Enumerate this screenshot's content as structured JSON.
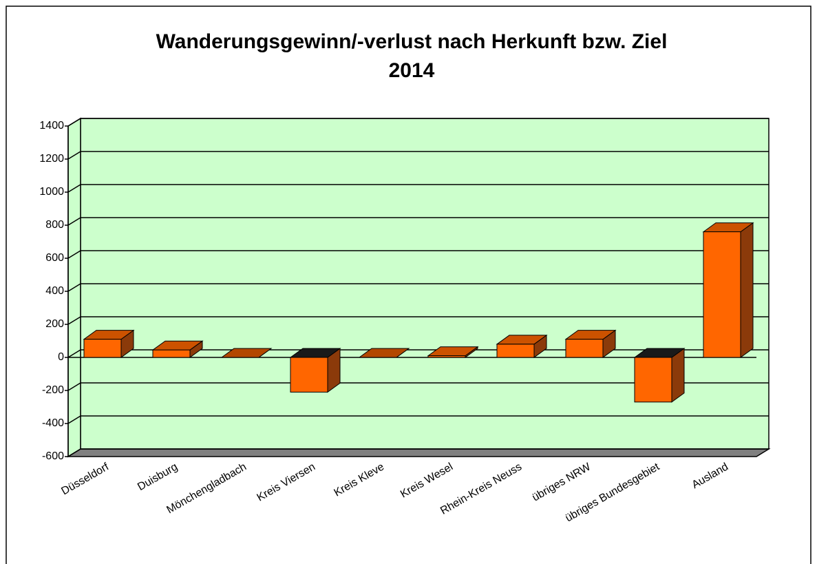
{
  "chart_data": {
    "type": "bar3d",
    "title": [
      "Wanderungsgewinn/-verlust nach Herkunft bzw. Ziel",
      "2014"
    ],
    "categories": [
      "Düsseldorf",
      "Duisburg",
      "Mönchengladbach",
      "Kreis Viersen",
      "Kreis Kleve",
      "Kreis Wesel",
      "Rhein-Kreis Neuss",
      "übriges NRW",
      "übriges Bundesgebiet",
      "Ausland"
    ],
    "values": [
      110,
      45,
      0,
      -210,
      0,
      10,
      80,
      110,
      -270,
      760
    ],
    "color": "#ff6600",
    "ylim": [
      -600,
      1400
    ],
    "yticks": [
      -600,
      -400,
      -200,
      0,
      200,
      400,
      600,
      800,
      1000,
      1200,
      1400
    ],
    "grid": true
  }
}
